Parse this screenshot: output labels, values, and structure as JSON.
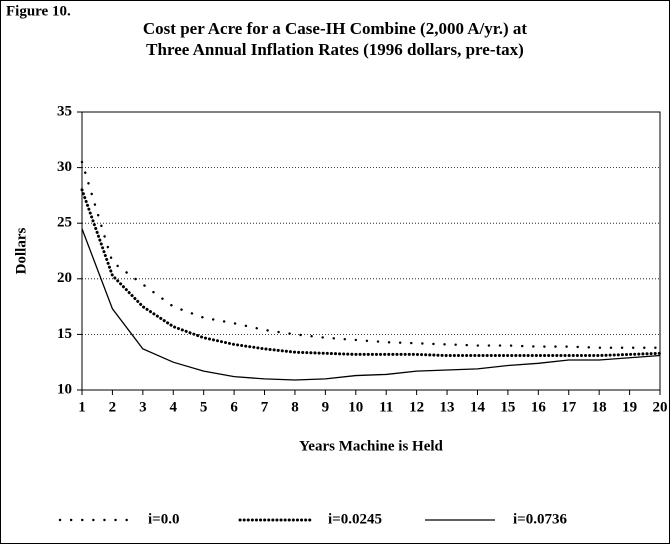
{
  "chart_data": {
    "type": "line",
    "figure_label": "Figure 10.",
    "title": [
      "Cost per Acre for a Case-IH Combine (2,000 A/yr.) at",
      "Three Annual Inflation Rates (1996 dollars, pre-tax)"
    ],
    "x_label": "Years Machine is Held",
    "y_label": "Dollars",
    "x": [
      1,
      2,
      3,
      4,
      5,
      6,
      7,
      8,
      9,
      10,
      11,
      12,
      13,
      14,
      15,
      16,
      17,
      18,
      19,
      20
    ],
    "xlim": [
      1,
      20
    ],
    "xticks": [
      1,
      2,
      3,
      4,
      5,
      6,
      7,
      8,
      9,
      10,
      11,
      12,
      13,
      14,
      15,
      16,
      17,
      18,
      19,
      20
    ],
    "ylim": [
      10,
      35
    ],
    "yticks": [
      10,
      15,
      20,
      25,
      30,
      35
    ],
    "grid": true,
    "legend": "bottom",
    "series": [
      {
        "name": "i=0.0",
        "color": "#000000",
        "style": "sparse-dots",
        "values": [
          30.5,
          21.5,
          19.5,
          17.5,
          16.5,
          16,
          15.4,
          15,
          14.7,
          14.5,
          14.3,
          14.2,
          14.1,
          14,
          14,
          13.9,
          13.9,
          13.8,
          13.8,
          13.8
        ]
      },
      {
        "name": "i=0.0245",
        "color": "#000000",
        "style": "dots",
        "values": [
          28,
          20.3,
          17.5,
          15.7,
          14.7,
          14.1,
          13.7,
          13.4,
          13.3,
          13.2,
          13.2,
          13.2,
          13.1,
          13.1,
          13.1,
          13.1,
          13.1,
          13.1,
          13.2,
          13.3
        ]
      },
      {
        "name": "i=0.0736",
        "color": "#000000",
        "style": "solid",
        "values": [
          24.5,
          17.3,
          13.7,
          12.5,
          11.7,
          11.2,
          11.0,
          10.9,
          11.0,
          11.3,
          11.4,
          11.7,
          11.8,
          11.9,
          12.2,
          12.4,
          12.7,
          12.7,
          12.9,
          13.1
        ]
      }
    ]
  }
}
